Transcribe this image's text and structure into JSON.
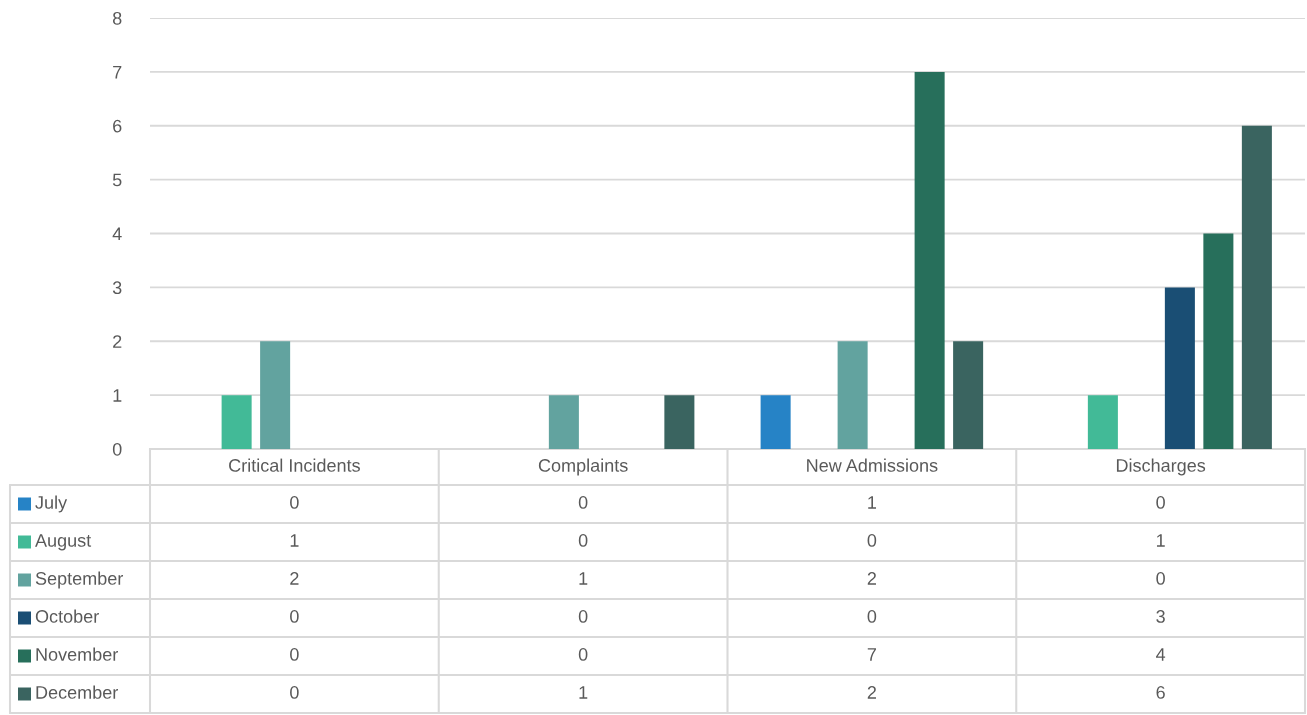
{
  "chart_data": {
    "type": "bar",
    "categories": [
      "Critical Incidents",
      "Complaints",
      "New Admissions",
      "Discharges"
    ],
    "series": [
      {
        "name": "July",
        "color": "#2683c6",
        "values": [
          0,
          0,
          1,
          0
        ]
      },
      {
        "name": "August",
        "color": "#42ba97",
        "values": [
          1,
          0,
          0,
          1
        ]
      },
      {
        "name": "September",
        "color": "#62a39f",
        "values": [
          2,
          1,
          2,
          0
        ]
      },
      {
        "name": "October",
        "color": "#1a4e74",
        "values": [
          0,
          0,
          0,
          3
        ]
      },
      {
        "name": "November",
        "color": "#276f5b",
        "values": [
          0,
          0,
          7,
          4
        ]
      },
      {
        "name": "December",
        "color": "#3a6460",
        "values": [
          0,
          1,
          2,
          6
        ]
      }
    ],
    "ylim": [
      0,
      8
    ],
    "yticks": [
      0,
      1,
      2,
      3,
      4,
      5,
      6,
      7,
      8
    ],
    "grid": "y",
    "legend": "bottom",
    "data_labels": true
  }
}
